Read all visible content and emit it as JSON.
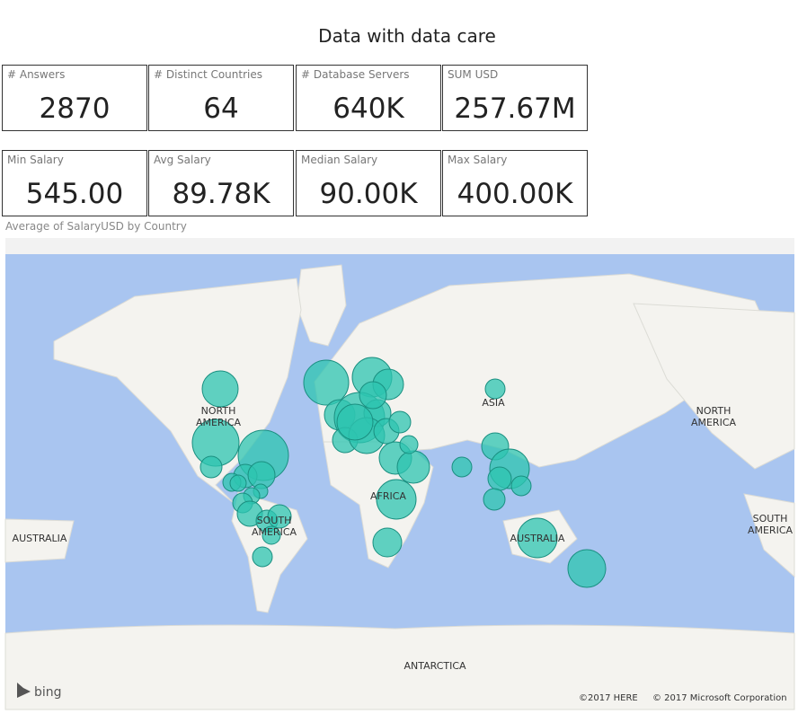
{
  "header": {
    "title": "Data with data care"
  },
  "cards": [
    {
      "label": "# Answers",
      "value": "2870"
    },
    {
      "label": "# Distinct Countries",
      "value": "64"
    },
    {
      "label": "# Database Servers",
      "value": "640K"
    },
    {
      "label": "SUM USD",
      "value": "257.67M"
    },
    {
      "label": "Min Salary",
      "value": "545.00"
    },
    {
      "label": "Avg Salary",
      "value": "89.78K"
    },
    {
      "label": "Median Salary",
      "value": "90.00K"
    },
    {
      "label": "Max Salary",
      "value": "400.00K"
    }
  ],
  "map": {
    "title": "Average of SalaryUSD by Country",
    "labels": [
      "NORTH AMERICA",
      "ASIA",
      "AFRICA",
      "SOUTH AMERICA",
      "AUSTRALIA",
      "AUSTRALIA",
      "NORTH AMERICA",
      "SOUTH AMERICA",
      "ANTARCTICA"
    ],
    "logo": "bing",
    "attribution_here": "©2017 HERE",
    "attribution_ms": "© 2017 Microsoft Corporation"
  }
}
